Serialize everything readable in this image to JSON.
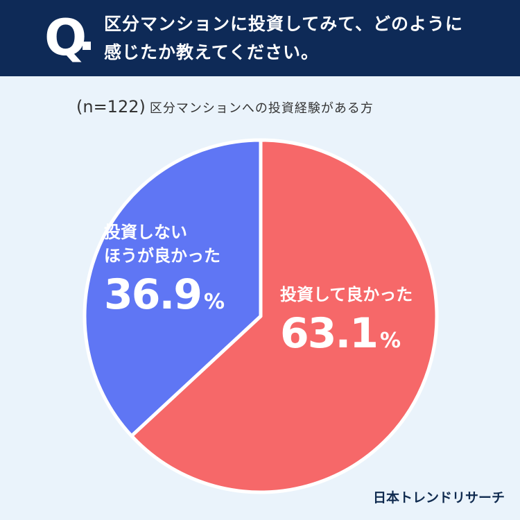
{
  "header": {
    "q_mark": "Q",
    "question_lines": [
      "区分マンションに投資してみて、どのように",
      "感じたか教えてください。"
    ]
  },
  "subtitle": {
    "sample": "(n=122)",
    "text": "区分マンションへの投資経験がある方"
  },
  "chart_data": {
    "type": "pie",
    "unit": "%",
    "slices": [
      {
        "label": "投資して良かった",
        "value": 63.1,
        "color": "#f66869"
      },
      {
        "label": "投資しないほうが良かった",
        "label_lines": [
          "投資しない",
          "ほうが良かった"
        ],
        "value": 36.9,
        "color": "#5f76f4"
      }
    ]
  },
  "labels": {
    "red_name": "投資して良かった",
    "red_pct": "63.1",
    "blue_name_1": "投資しない",
    "blue_name_2": "ほうが良かった",
    "blue_pct": "36.9",
    "pct_sign": "%"
  },
  "logo": {
    "text": "日本トレンドリサーチ"
  }
}
